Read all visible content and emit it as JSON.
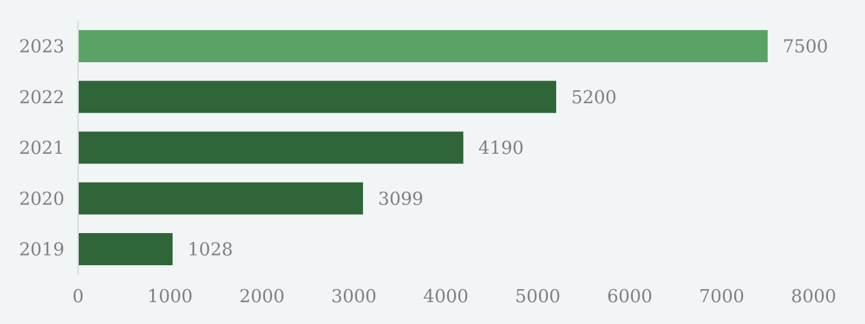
{
  "chart_data": {
    "type": "bar",
    "orientation": "horizontal",
    "categories": [
      "2023",
      "2022",
      "2021",
      "2020",
      "2019"
    ],
    "values": [
      7500,
      5200,
      4190,
      3099,
      1028
    ],
    "data_labels": [
      "7500",
      "5200",
      "4190",
      "3099",
      "1028"
    ],
    "highlight_category": "2023",
    "colors": {
      "highlight": "#5aa367",
      "bar": "#2f6638",
      "background": "#f1f5f6",
      "axis_line": "#d9dcdc",
      "text": "#808080"
    },
    "xlim": [
      0,
      8000
    ],
    "x_ticks": [
      "0",
      "1000",
      "2000",
      "3000",
      "4000",
      "5000",
      "6000",
      "7000",
      "8000"
    ],
    "grid": false,
    "legend": "none",
    "title": "",
    "xlabel": "",
    "ylabel": ""
  }
}
